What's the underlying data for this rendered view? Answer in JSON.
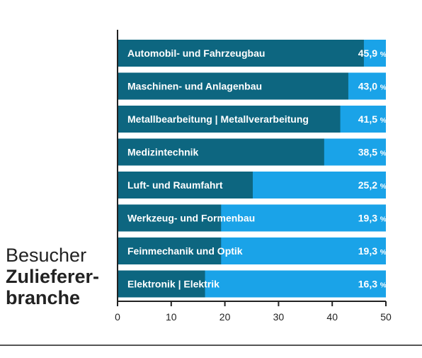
{
  "title": {
    "line1": "Besucher",
    "line2": "Zulieferer-",
    "line3": "branche"
  },
  "colors": {
    "bar_dark": "#0d6680",
    "bar_light": "#1aa3e8",
    "axis": "#222222",
    "rule": "#555555"
  },
  "chart_data": {
    "type": "bar",
    "orientation": "horizontal",
    "categories": [
      "Automobil- und Fahrzeugbau",
      "Maschinen- und Anlagenbau",
      "Metallbearbeitung | Metallverarbeitung",
      "Medizintechnik",
      "Luft- und Raumfahrt",
      "Werkzeug- und Formenbau",
      "Feinmechanik und Optik",
      "Elektronik | Elektrik"
    ],
    "values": [
      45.9,
      43.0,
      41.5,
      38.5,
      25.2,
      19.3,
      19.3,
      16.3
    ],
    "value_labels": [
      "45,9",
      "43,0",
      "41,5",
      "38,5",
      "25,2",
      "19,3",
      "19,3",
      "16,3"
    ],
    "unit": "%",
    "xlim": [
      0,
      50
    ],
    "ticks": [
      0,
      10,
      20,
      30,
      40,
      50
    ],
    "background_max": 50,
    "grid": false
  }
}
